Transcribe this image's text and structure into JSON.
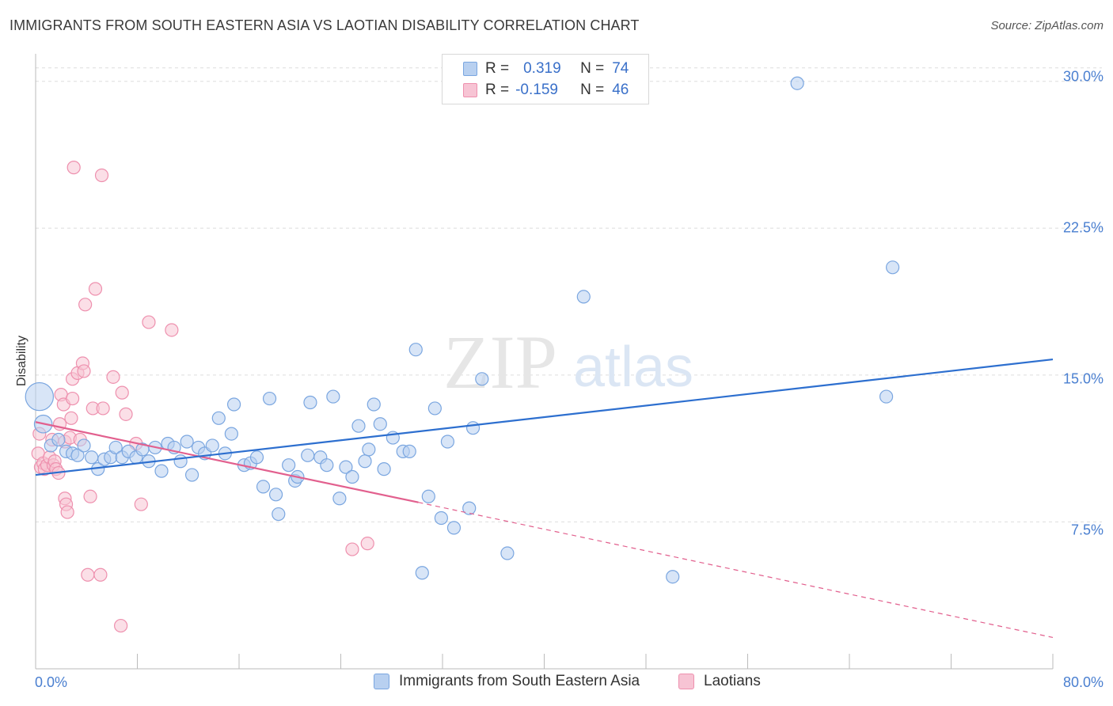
{
  "title": "IMMIGRANTS FROM SOUTH EASTERN ASIA VS LAOTIAN DISABILITY CORRELATION CHART",
  "source": "Source: ZipAtlas.com",
  "watermark": {
    "zip": "ZIP",
    "atlas": "atlas"
  },
  "legend": {
    "r_label": "R =",
    "n_label": "N =",
    "rows": [
      {
        "r": "0.319",
        "n": "74"
      },
      {
        "r": "-0.159",
        "n": "46"
      }
    ]
  },
  "colors": {
    "blue_fill": "#b8d0f0",
    "blue_stroke": "#7aa6e0",
    "blue_line": "#2d6fcf",
    "pink_fill": "#f7c4d4",
    "pink_stroke": "#ee90ae",
    "pink_line": "#e2608e",
    "tick_label": "#4a7fd0",
    "grid": "#dddddd"
  },
  "chart_data": {
    "type": "scatter",
    "title": "IMMIGRANTS FROM SOUTH EASTERN ASIA VS LAOTIAN DISABILITY CORRELATION CHART",
    "xlabel": "",
    "ylabel": "Disability",
    "xlim": [
      0,
      80
    ],
    "ylim": [
      0,
      31
    ],
    "x_tick_labels": [
      "0.0%",
      "80.0%"
    ],
    "y_tick_labels": [
      "7.5%",
      "15.0%",
      "22.5%",
      "30.0%"
    ],
    "y_ticks": [
      7.5,
      15.0,
      22.5,
      30.0
    ],
    "grid": true,
    "legend_position": "top-center",
    "series": [
      {
        "name": "Immigrants from South Eastern Asia",
        "color": "blue",
        "r": 0.319,
        "n": 74,
        "trend": {
          "x": [
            0,
            80
          ],
          "y": [
            9.9,
            15.8
          ]
        },
        "points": [
          [
            0.3,
            13.9,
            2.2
          ],
          [
            0.6,
            12.5,
            1.4
          ],
          [
            1.2,
            11.4,
            1
          ],
          [
            1.8,
            11.7,
            1
          ],
          [
            2.4,
            11.1,
            1
          ],
          [
            2.9,
            11.0,
            1
          ],
          [
            3.3,
            10.9,
            1
          ],
          [
            3.8,
            11.4,
            1
          ],
          [
            4.4,
            10.8,
            1
          ],
          [
            4.9,
            10.2,
            1
          ],
          [
            5.4,
            10.7,
            1
          ],
          [
            5.9,
            10.8,
            1
          ],
          [
            6.3,
            11.3,
            1
          ],
          [
            6.8,
            10.8,
            1
          ],
          [
            7.3,
            11.1,
            1
          ],
          [
            7.9,
            10.8,
            1
          ],
          [
            8.4,
            11.2,
            1
          ],
          [
            8.9,
            10.6,
            1
          ],
          [
            9.4,
            11.3,
            1
          ],
          [
            9.9,
            10.1,
            1
          ],
          [
            10.4,
            11.5,
            1
          ],
          [
            10.9,
            11.3,
            1
          ],
          [
            11.4,
            10.6,
            1
          ],
          [
            11.9,
            11.6,
            1
          ],
          [
            12.3,
            9.9,
            1
          ],
          [
            12.8,
            11.3,
            1
          ],
          [
            13.3,
            11.0,
            1
          ],
          [
            13.9,
            11.4,
            1
          ],
          [
            14.4,
            12.8,
            1
          ],
          [
            14.9,
            11.0,
            1
          ],
          [
            15.4,
            12.0,
            1
          ],
          [
            15.6,
            13.5,
            1
          ],
          [
            16.4,
            10.4,
            1
          ],
          [
            16.9,
            10.5,
            1
          ],
          [
            17.4,
            10.8,
            1
          ],
          [
            17.9,
            9.3,
            1
          ],
          [
            18.4,
            13.8,
            1
          ],
          [
            18.9,
            8.9,
            1
          ],
          [
            19.1,
            7.9,
            1
          ],
          [
            19.9,
            10.4,
            1
          ],
          [
            20.4,
            9.6,
            1
          ],
          [
            20.6,
            9.8,
            1
          ],
          [
            21.4,
            10.9,
            1
          ],
          [
            21.6,
            13.6,
            1
          ],
          [
            22.4,
            10.8,
            1
          ],
          [
            22.9,
            10.4,
            1
          ],
          [
            23.4,
            13.9,
            1
          ],
          [
            23.9,
            8.7,
            1
          ],
          [
            24.4,
            10.3,
            1
          ],
          [
            24.9,
            9.8,
            1
          ],
          [
            25.4,
            12.4,
            1
          ],
          [
            25.9,
            10.6,
            1
          ],
          [
            26.2,
            11.2,
            1
          ],
          [
            26.6,
            13.5,
            1
          ],
          [
            27.1,
            12.5,
            1
          ],
          [
            27.4,
            10.2,
            1
          ],
          [
            28.1,
            11.8,
            1
          ],
          [
            28.9,
            11.1,
            1
          ],
          [
            29.4,
            11.1,
            1
          ],
          [
            29.9,
            16.3,
            1
          ],
          [
            30.4,
            4.9,
            1
          ],
          [
            30.9,
            8.8,
            1
          ],
          [
            31.4,
            13.3,
            1
          ],
          [
            31.9,
            7.7,
            1
          ],
          [
            32.4,
            11.6,
            1
          ],
          [
            32.9,
            7.2,
            1
          ],
          [
            34.1,
            8.2,
            1
          ],
          [
            34.4,
            12.3,
            1
          ],
          [
            35.1,
            14.8,
            1
          ],
          [
            37.1,
            5.9,
            1
          ],
          [
            43.1,
            19.0,
            1
          ],
          [
            50.1,
            4.7,
            1
          ],
          [
            59.9,
            29.9,
            1
          ],
          [
            66.9,
            13.9,
            1
          ],
          [
            67.4,
            20.5,
            1
          ]
        ]
      },
      {
        "name": "Laotians",
        "color": "pink",
        "r": -0.159,
        "n": 46,
        "trend_solid": {
          "x": [
            0,
            30.1
          ],
          "y": [
            12.6,
            8.5
          ]
        },
        "trend_dashed": {
          "x": [
            30.1,
            80
          ],
          "y": [
            8.5,
            1.6
          ]
        },
        "points": [
          [
            0.2,
            11.0,
            1
          ],
          [
            0.3,
            12.0,
            1
          ],
          [
            0.4,
            10.3,
            1
          ],
          [
            0.6,
            10.5,
            1
          ],
          [
            0.7,
            10.2,
            1
          ],
          [
            0.9,
            10.4,
            1
          ],
          [
            1.1,
            10.8,
            1
          ],
          [
            1.3,
            11.7,
            1
          ],
          [
            1.4,
            10.4,
            1
          ],
          [
            1.5,
            10.6,
            1
          ],
          [
            1.6,
            10.2,
            1
          ],
          [
            1.8,
            10.0,
            1
          ],
          [
            1.9,
            12.5,
            1
          ],
          [
            2.0,
            14.0,
            1
          ],
          [
            2.2,
            13.5,
            1
          ],
          [
            2.3,
            11.6,
            1
          ],
          [
            2.3,
            8.7,
            1
          ],
          [
            2.4,
            8.4,
            1
          ],
          [
            2.5,
            8.0,
            1
          ],
          [
            2.7,
            11.8,
            1
          ],
          [
            2.8,
            12.8,
            1
          ],
          [
            2.9,
            13.8,
            1
          ],
          [
            2.9,
            14.8,
            1
          ],
          [
            3.0,
            25.6,
            1
          ],
          [
            3.3,
            15.1,
            1
          ],
          [
            3.5,
            11.7,
            1
          ],
          [
            3.7,
            15.6,
            1
          ],
          [
            3.8,
            15.2,
            1
          ],
          [
            3.9,
            18.6,
            1
          ],
          [
            4.1,
            4.8,
            1
          ],
          [
            4.3,
            8.8,
            1
          ],
          [
            4.5,
            13.3,
            1
          ],
          [
            4.7,
            19.4,
            1
          ],
          [
            5.1,
            4.8,
            1
          ],
          [
            5.2,
            25.2,
            1
          ],
          [
            5.3,
            13.3,
            1
          ],
          [
            6.1,
            14.9,
            1
          ],
          [
            6.7,
            2.2,
            1
          ],
          [
            6.8,
            14.1,
            1
          ],
          [
            7.1,
            13.0,
            1
          ],
          [
            7.9,
            11.5,
            1
          ],
          [
            8.3,
            8.4,
            1
          ],
          [
            8.9,
            17.7,
            1
          ],
          [
            10.7,
            17.3,
            1
          ],
          [
            24.9,
            6.1,
            1
          ],
          [
            26.1,
            6.4,
            1
          ]
        ]
      }
    ]
  },
  "bottom_legend": [
    "Immigrants from South Eastern Asia",
    "Laotians"
  ]
}
